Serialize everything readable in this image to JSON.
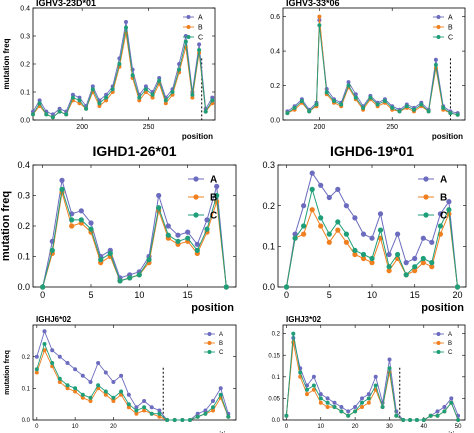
{
  "figure": {
    "colors": {
      "A": "#6b6bbf",
      "B": "#f07f1f",
      "C": "#1f9e7a"
    },
    "legend_labels": [
      "A",
      "B",
      "C"
    ]
  },
  "chart_data": [
    {
      "type": "line",
      "title": "IGHV3-23D*01",
      "xlabel": "position",
      "ylabel": "mutation freq",
      "xlim": [
        163,
        300
      ],
      "ylim": [
        0,
        0.4
      ],
      "xticks": [
        200,
        250
      ],
      "yticks": [
        0,
        0.1,
        0.2,
        0.3,
        0.4
      ],
      "dashed_x": 290,
      "legend_position": "top-right",
      "x": [
        163,
        168,
        173,
        178,
        183,
        188,
        193,
        198,
        203,
        208,
        213,
        218,
        223,
        228,
        233,
        238,
        243,
        248,
        253,
        258,
        263,
        268,
        273,
        278,
        283,
        288,
        293,
        298
      ],
      "series": [
        {
          "name": "A",
          "values": [
            0.03,
            0.07,
            0.03,
            0.02,
            0.04,
            0.03,
            0.09,
            0.08,
            0.05,
            0.12,
            0.07,
            0.09,
            0.12,
            0.22,
            0.35,
            0.18,
            0.09,
            0.12,
            0.1,
            0.15,
            0.08,
            0.11,
            0.2,
            0.3,
            0.1,
            0.27,
            0.04,
            0.08
          ]
        },
        {
          "name": "B",
          "values": [
            0.02,
            0.05,
            0.02,
            0.01,
            0.03,
            0.02,
            0.07,
            0.06,
            0.04,
            0.1,
            0.05,
            0.07,
            0.1,
            0.19,
            0.31,
            0.15,
            0.07,
            0.1,
            0.08,
            0.13,
            0.06,
            0.09,
            0.17,
            0.26,
            0.08,
            0.24,
            0.03,
            0.06
          ]
        },
        {
          "name": "C",
          "values": [
            0.02,
            0.06,
            0.02,
            0.01,
            0.03,
            0.02,
            0.08,
            0.07,
            0.04,
            0.11,
            0.06,
            0.08,
            0.11,
            0.2,
            0.33,
            0.16,
            0.08,
            0.11,
            0.09,
            0.14,
            0.07,
            0.1,
            0.18,
            0.28,
            0.09,
            0.25,
            0.03,
            0.07
          ]
        }
      ]
    },
    {
      "type": "line",
      "title": "IGHV3-33*06",
      "xlabel": "position",
      "ylabel": "",
      "xlim": [
        175,
        300
      ],
      "ylim": [
        0,
        0.65
      ],
      "xticks": [
        200,
        250
      ],
      "yticks": [
        0,
        0.2,
        0.4,
        0.6
      ],
      "dashed_x": 290,
      "legend_position": "top-right",
      "x": [
        178,
        183,
        188,
        193,
        198,
        200,
        205,
        210,
        215,
        220,
        225,
        230,
        235,
        240,
        245,
        250,
        255,
        260,
        265,
        270,
        275,
        280,
        285,
        290,
        295
      ],
      "series": [
        {
          "name": "A",
          "values": [
            0.05,
            0.08,
            0.12,
            0.06,
            0.1,
            0.58,
            0.18,
            0.12,
            0.1,
            0.22,
            0.15,
            0.08,
            0.14,
            0.1,
            0.12,
            0.08,
            0.06,
            0.09,
            0.07,
            0.1,
            0.06,
            0.35,
            0.08,
            0.05,
            0.04
          ]
        },
        {
          "name": "B",
          "values": [
            0.04,
            0.06,
            0.1,
            0.05,
            0.08,
            0.6,
            0.15,
            0.1,
            0.08,
            0.19,
            0.12,
            0.06,
            0.12,
            0.08,
            0.1,
            0.06,
            0.05,
            0.07,
            0.05,
            0.08,
            0.05,
            0.3,
            0.06,
            0.04,
            0.03
          ]
        },
        {
          "name": "C",
          "values": [
            0.04,
            0.07,
            0.11,
            0.05,
            0.09,
            0.55,
            0.16,
            0.11,
            0.09,
            0.2,
            0.13,
            0.07,
            0.13,
            0.09,
            0.11,
            0.07,
            0.05,
            0.08,
            0.06,
            0.09,
            0.05,
            0.32,
            0.07,
            0.04,
            0.03
          ]
        }
      ]
    },
    {
      "type": "line",
      "title": "IGHD1-26*01",
      "xlabel": "position",
      "ylabel": "mutation freq",
      "xlim": [
        -1,
        20
      ],
      "ylim": [
        0,
        0.4
      ],
      "xticks": [
        0,
        5,
        10,
        15
      ],
      "yticks": [
        0,
        0.1,
        0.2,
        0.3,
        0.4
      ],
      "legend_position": "top-right",
      "x": [
        0,
        1,
        2,
        3,
        4,
        5,
        6,
        7,
        8,
        9,
        10,
        11,
        12,
        13,
        14,
        15,
        16,
        17,
        18,
        19
      ],
      "series": [
        {
          "name": "A",
          "values": [
            0.0,
            0.15,
            0.35,
            0.24,
            0.25,
            0.21,
            0.1,
            0.12,
            0.03,
            0.04,
            0.05,
            0.1,
            0.3,
            0.2,
            0.17,
            0.18,
            0.14,
            0.22,
            0.33,
            0.0
          ]
        },
        {
          "name": "B",
          "values": [
            0.0,
            0.11,
            0.31,
            0.2,
            0.21,
            0.18,
            0.08,
            0.1,
            0.02,
            0.03,
            0.04,
            0.08,
            0.25,
            0.16,
            0.14,
            0.15,
            0.11,
            0.18,
            0.28,
            0.0
          ]
        },
        {
          "name": "C",
          "values": [
            0.0,
            0.12,
            0.32,
            0.22,
            0.22,
            0.19,
            0.09,
            0.11,
            0.02,
            0.03,
            0.04,
            0.09,
            0.26,
            0.17,
            0.15,
            0.16,
            0.12,
            0.19,
            0.3,
            0.0
          ]
        }
      ]
    },
    {
      "type": "line",
      "title": "IGHD6-19*01",
      "xlabel": "position",
      "ylabel": "",
      "xlim": [
        -1,
        21
      ],
      "ylim": [
        0,
        0.3
      ],
      "xticks": [
        0,
        5,
        10,
        15,
        20
      ],
      "yticks": [
        0,
        0.1,
        0.2,
        0.3
      ],
      "legend_position": "top-right",
      "x": [
        0,
        1,
        2,
        3,
        4,
        5,
        6,
        7,
        8,
        9,
        10,
        11,
        12,
        13,
        14,
        15,
        16,
        17,
        18,
        19,
        20
      ],
      "series": [
        {
          "name": "A",
          "values": [
            0.0,
            0.13,
            0.2,
            0.28,
            0.25,
            0.22,
            0.24,
            0.2,
            0.17,
            0.13,
            0.12,
            0.18,
            0.08,
            0.13,
            0.06,
            0.07,
            0.12,
            0.11,
            0.18,
            0.21,
            0.0
          ]
        },
        {
          "name": "B",
          "values": [
            0.0,
            0.12,
            0.13,
            0.19,
            0.15,
            0.11,
            0.14,
            0.11,
            0.08,
            0.07,
            0.06,
            0.12,
            0.04,
            0.07,
            0.03,
            0.04,
            0.06,
            0.05,
            0.13,
            0.18,
            0.0
          ]
        },
        {
          "name": "C",
          "values": [
            0.0,
            0.12,
            0.15,
            0.24,
            0.17,
            0.13,
            0.16,
            0.13,
            0.09,
            0.08,
            0.07,
            0.14,
            0.05,
            0.08,
            0.03,
            0.05,
            0.07,
            0.06,
            0.15,
            0.19,
            0.0
          ]
        }
      ]
    },
    {
      "type": "line",
      "title": "IGHJ6*02",
      "xlabel": "position",
      "ylabel": "mutation freq",
      "xlim": [
        -1,
        52
      ],
      "ylim": [
        0,
        0.3
      ],
      "xticks": [
        0,
        10,
        20
      ],
      "yticks": [
        0,
        0.1,
        0.2
      ],
      "dashed_x": 33,
      "legend_position": "top-right",
      "x": [
        0,
        2,
        4,
        6,
        8,
        10,
        12,
        14,
        16,
        18,
        20,
        22,
        24,
        26,
        28,
        30,
        32,
        34,
        36,
        38,
        40,
        42,
        44,
        46,
        48,
        50
      ],
      "series": [
        {
          "name": "A",
          "values": [
            0.2,
            0.28,
            0.22,
            0.2,
            0.18,
            0.16,
            0.14,
            0.12,
            0.18,
            0.15,
            0.12,
            0.14,
            0.08,
            0.04,
            0.06,
            0.04,
            0.03,
            0.0,
            0.0,
            0.0,
            0.0,
            0.02,
            0.03,
            0.06,
            0.1,
            0.02
          ]
        },
        {
          "name": "B",
          "values": [
            0.15,
            0.22,
            0.17,
            0.12,
            0.1,
            0.09,
            0.07,
            0.06,
            0.1,
            0.08,
            0.06,
            0.08,
            0.04,
            0.02,
            0.03,
            0.02,
            0.01,
            0.0,
            0.0,
            0.0,
            0.0,
            0.01,
            0.02,
            0.03,
            0.07,
            0.01
          ]
        },
        {
          "name": "C",
          "values": [
            0.16,
            0.24,
            0.18,
            0.13,
            0.11,
            0.1,
            0.08,
            0.07,
            0.11,
            0.09,
            0.07,
            0.09,
            0.05,
            0.03,
            0.04,
            0.02,
            0.02,
            0.0,
            0.0,
            0.0,
            0.0,
            0.01,
            0.02,
            0.04,
            0.08,
            0.01
          ]
        }
      ]
    },
    {
      "type": "line",
      "title": "IGHJ3*02",
      "xlabel": "position",
      "ylabel": "",
      "xlim": [
        -1,
        52
      ],
      "ylim": [
        0,
        0.22
      ],
      "xticks": [
        0,
        10,
        20,
        30,
        40,
        50
      ],
      "yticks": [
        0,
        0.05,
        0.1,
        0.15,
        0.2
      ],
      "dashed_x": 33,
      "legend_position": "top-right",
      "x": [
        0,
        2,
        4,
        6,
        8,
        10,
        12,
        14,
        16,
        18,
        20,
        22,
        24,
        26,
        28,
        30,
        32,
        34,
        36,
        38,
        40,
        42,
        44,
        46,
        48,
        50
      ],
      "series": [
        {
          "name": "A",
          "values": [
            0.01,
            0.19,
            0.12,
            0.08,
            0.1,
            0.06,
            0.05,
            0.04,
            0.03,
            0.02,
            0.03,
            0.05,
            0.06,
            0.1,
            0.04,
            0.14,
            0.02,
            0.0,
            0.0,
            0.0,
            0.0,
            0.01,
            0.02,
            0.03,
            0.05,
            0.01
          ]
        },
        {
          "name": "B",
          "values": [
            0.01,
            0.18,
            0.1,
            0.06,
            0.07,
            0.04,
            0.03,
            0.03,
            0.02,
            0.01,
            0.02,
            0.03,
            0.04,
            0.07,
            0.03,
            0.11,
            0.01,
            0.0,
            0.0,
            0.0,
            0.0,
            0.01,
            0.01,
            0.02,
            0.04,
            0.0
          ]
        },
        {
          "name": "C",
          "values": [
            0.01,
            0.2,
            0.11,
            0.07,
            0.08,
            0.05,
            0.04,
            0.03,
            0.02,
            0.01,
            0.02,
            0.04,
            0.05,
            0.08,
            0.03,
            0.12,
            0.01,
            0.0,
            0.0,
            0.0,
            0.0,
            0.01,
            0.01,
            0.02,
            0.04,
            0.0
          ]
        }
      ]
    }
  ]
}
